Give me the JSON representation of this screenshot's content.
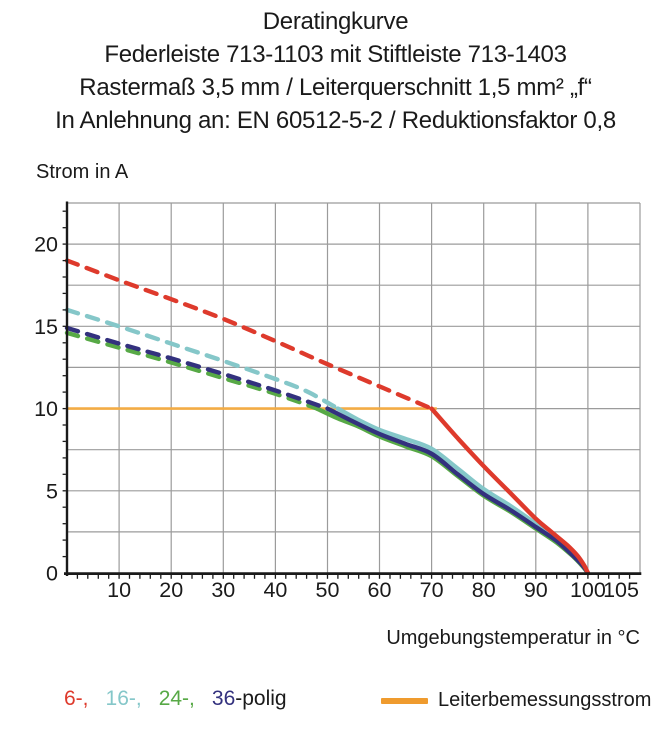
{
  "title_lines": [
    "Deratingkurve",
    "Federleiste 713-1103 mit Stiftleiste 713-1403",
    "Rastermaß 3,5 mm / Leiterquerschnitt 1,5 mm² „f“",
    "In Anlehnung an: EN 60512-5-2 / Reduktionsfaktor 0,8"
  ],
  "axes": {
    "y_label": "Strom in A",
    "x_label": "Umgebungstemperatur in °C"
  },
  "legend": {
    "pole_items": [
      {
        "label": "6-,",
        "color": "#DE3A2C"
      },
      {
        "label": "16-,",
        "color": "#85C7C9"
      },
      {
        "label": "24-,",
        "color": "#57A946"
      },
      {
        "label": "36",
        "color": "#33317E"
      }
    ],
    "suffix": "-polig",
    "reference_label": "Leiterbemessungsstrom",
    "reference_color": "#EF9B2E"
  },
  "chart_data": {
    "type": "line",
    "title": "Deratingkurve",
    "xlabel": "Umgebungstemperatur in °C",
    "ylabel": "Strom in A",
    "x_range": [
      0,
      110
    ],
    "y_range": [
      0,
      22.5
    ],
    "x_grid_step": 10,
    "y_grid_step": 2.5,
    "x_minor_tick_step": 2,
    "y_minor_tick_step": 1,
    "x_ticks_labeled": [
      10,
      20,
      30,
      40,
      50,
      60,
      70,
      80,
      90,
      100,
      105
    ],
    "y_ticks_labeled": [
      0,
      5,
      10,
      15,
      20
    ],
    "grid_color": "#9B9B9B",
    "axis_color": "#1A1A1A",
    "grid_on": true,
    "legend_position": "bottom",
    "reference_line": {
      "name": "Leiterbemessungsstrom",
      "y": 10,
      "x_start": 0,
      "x_end": 71,
      "color": "#F3AC45"
    },
    "series": [
      {
        "name": "6-polig",
        "color": "#DE3A2C",
        "style": "dashed-then-solid",
        "dashed_until_x": 70,
        "dashed": [
          [
            0,
            19
          ],
          [
            10,
            17.8
          ],
          [
            20,
            16.65
          ],
          [
            30,
            15.45
          ],
          [
            40,
            14.1
          ],
          [
            50,
            12.7
          ],
          [
            60,
            11.35
          ],
          [
            70,
            10
          ]
        ],
        "solid": [
          [
            70,
            10
          ],
          [
            75,
            8.2
          ],
          [
            80,
            6.5
          ],
          [
            85,
            4.9
          ],
          [
            90,
            3.3
          ],
          [
            93,
            2.5
          ],
          [
            96,
            1.7
          ],
          [
            98,
            1.05
          ],
          [
            99.3,
            0.45
          ],
          [
            100,
            0
          ]
        ]
      },
      {
        "name": "16-polig",
        "color": "#85C7C9",
        "style": "dashed-then-solid",
        "dashed_until_x": 52,
        "dashed": [
          [
            0,
            16
          ],
          [
            10,
            15
          ],
          [
            20,
            13.95
          ],
          [
            30,
            12.9
          ],
          [
            40,
            11.8
          ],
          [
            46,
            11.05
          ],
          [
            52,
            10
          ]
        ],
        "solid": [
          [
            52,
            10
          ],
          [
            56,
            9.3
          ],
          [
            60,
            8.7
          ],
          [
            65,
            8.15
          ],
          [
            70,
            7.55
          ],
          [
            75,
            6.35
          ],
          [
            80,
            5.1
          ],
          [
            85,
            4.1
          ],
          [
            90,
            3.0
          ],
          [
            94,
            2.1
          ],
          [
            97,
            1.25
          ],
          [
            99,
            0.55
          ],
          [
            100,
            0
          ]
        ]
      },
      {
        "name": "24-polig",
        "color": "#57A946",
        "style": "dashed-then-solid",
        "dashed_until_x": 48,
        "dashed": [
          [
            0,
            14.6
          ],
          [
            10,
            13.7
          ],
          [
            20,
            12.8
          ],
          [
            30,
            11.85
          ],
          [
            40,
            10.9
          ],
          [
            48,
            10
          ]
        ],
        "solid": [
          [
            48,
            10
          ],
          [
            52,
            9.4
          ],
          [
            56,
            8.9
          ],
          [
            60,
            8.3
          ],
          [
            65,
            7.7
          ],
          [
            70,
            7.1
          ],
          [
            75,
            5.9
          ],
          [
            80,
            4.7
          ],
          [
            85,
            3.75
          ],
          [
            90,
            2.7
          ],
          [
            94,
            1.85
          ],
          [
            97,
            1.05
          ],
          [
            99,
            0.4
          ],
          [
            100,
            0
          ]
        ]
      },
      {
        "name": "36-polig",
        "color": "#33317E",
        "style": "dashed-then-solid",
        "dashed_until_x": 50,
        "dashed": [
          [
            0,
            14.9
          ],
          [
            10,
            13.95
          ],
          [
            20,
            13.05
          ],
          [
            30,
            12.1
          ],
          [
            40,
            11.1
          ],
          [
            50,
            10
          ]
        ],
        "solid": [
          [
            50,
            10
          ],
          [
            55,
            9.2
          ],
          [
            60,
            8.45
          ],
          [
            65,
            7.85
          ],
          [
            70,
            7.25
          ],
          [
            75,
            6.0
          ],
          [
            80,
            4.8
          ],
          [
            85,
            3.85
          ],
          [
            90,
            2.8
          ],
          [
            94,
            1.95
          ],
          [
            97,
            1.1
          ],
          [
            99,
            0.45
          ],
          [
            100,
            0
          ]
        ]
      }
    ],
    "draw_order": [
      "16-polig",
      "24-polig",
      "36-polig",
      "6-polig"
    ]
  }
}
